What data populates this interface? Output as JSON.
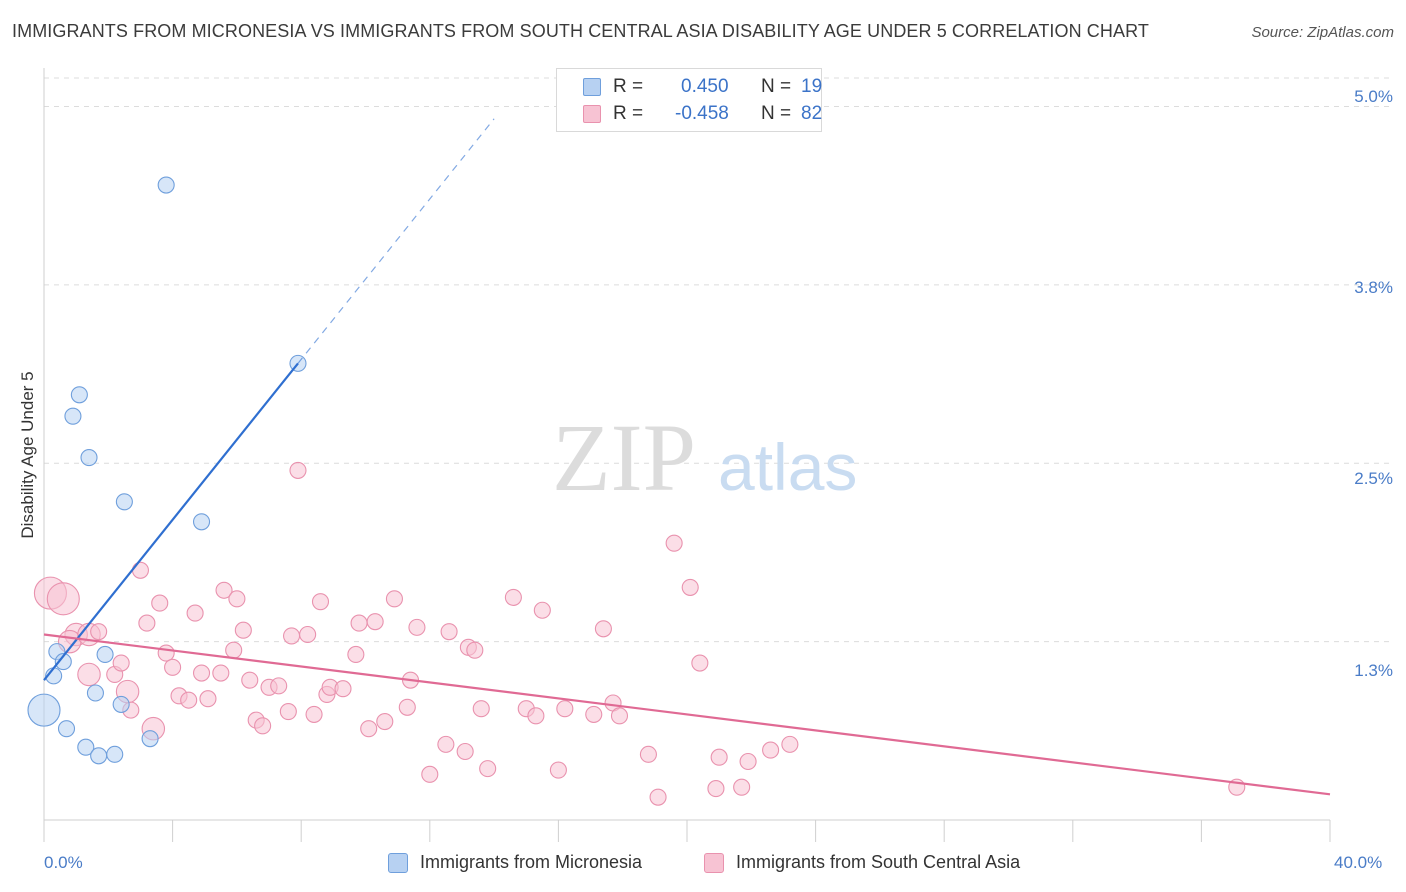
{
  "title": "IMMIGRANTS FROM MICRONESIA VS IMMIGRANTS FROM SOUTH CENTRAL ASIA DISABILITY AGE UNDER 5 CORRELATION CHART",
  "source": "Source: ZipAtlas.com",
  "watermark": {
    "zip": "ZIP",
    "atlas": "atlas"
  },
  "legend": {
    "r_label": "R =",
    "n_label": "N =",
    "series": [
      {
        "r": "0.450",
        "n": "19"
      },
      {
        "r": "-0.458",
        "n": "82"
      }
    ]
  },
  "colors": {
    "blue_fill": "#b7d1f2",
    "blue_stroke": "#6f9fdc",
    "blue_line": "#2f6fd0",
    "pink_fill": "#f7c3d3",
    "pink_stroke": "#e992ae",
    "pink_line": "#e06a94",
    "grid": "#dcdcdc",
    "tick_text": "#4a7cc7"
  },
  "chart_data": {
    "type": "scatter",
    "title": "IMMIGRANTS FROM MICRONESIA VS IMMIGRANTS FROM SOUTH CENTRAL ASIA DISABILITY AGE UNDER 5 CORRELATION CHART",
    "xlabel": "",
    "ylabel": "Disability Age Under 5",
    "xlim": [
      0,
      40
    ],
    "ylim": [
      0,
      5.2
    ],
    "x_tick_labels": [
      "0.0%",
      "40.0%"
    ],
    "y_tick_labels": [
      "1.3%",
      "2.5%",
      "3.8%",
      "5.0%"
    ],
    "y_ticks": [
      1.25,
      2.5,
      3.75,
      5.0
    ],
    "grid": true,
    "legend_position": "top-center",
    "series": [
      {
        "name": "Immigrants from Micronesia",
        "color": "#6f9fdc",
        "trend": {
          "x0": 0.0,
          "y0": 0.98,
          "x1": 7.9,
          "y1": 3.2,
          "dashed_to_x": 14.0
        },
        "points": [
          {
            "x": 3.8,
            "y": 4.45
          },
          {
            "x": 7.9,
            "y": 3.2
          },
          {
            "x": 1.1,
            "y": 2.98
          },
          {
            "x": 0.9,
            "y": 2.83
          },
          {
            "x": 1.4,
            "y": 2.54
          },
          {
            "x": 2.5,
            "y": 2.23
          },
          {
            "x": 4.9,
            "y": 2.09
          },
          {
            "x": 0.4,
            "y": 1.18
          },
          {
            "x": 1.9,
            "y": 1.16
          },
          {
            "x": 0.6,
            "y": 1.11
          },
          {
            "x": 0.3,
            "y": 1.01
          },
          {
            "x": 1.6,
            "y": 0.89
          },
          {
            "x": 2.4,
            "y": 0.81
          },
          {
            "x": 0.0,
            "y": 0.77,
            "size": 2
          },
          {
            "x": 0.7,
            "y": 0.64
          },
          {
            "x": 3.3,
            "y": 0.57
          },
          {
            "x": 1.3,
            "y": 0.51
          },
          {
            "x": 1.7,
            "y": 0.45
          },
          {
            "x": 2.2,
            "y": 0.46
          }
        ]
      },
      {
        "name": "Immigrants from South Central Asia",
        "color": "#e992ae",
        "trend": {
          "x0": 0.0,
          "y0": 1.3,
          "x1": 40.0,
          "y1": 0.18
        },
        "points": [
          {
            "x": 0.2,
            "y": 1.59,
            "size": 2
          },
          {
            "x": 0.6,
            "y": 1.55,
            "size": 2
          },
          {
            "x": 1.0,
            "y": 1.3,
            "size": 1.4
          },
          {
            "x": 0.8,
            "y": 1.25,
            "size": 1.4
          },
          {
            "x": 1.4,
            "y": 1.3,
            "size": 1.4
          },
          {
            "x": 1.7,
            "y": 1.32
          },
          {
            "x": 1.4,
            "y": 1.02,
            "size": 1.4
          },
          {
            "x": 2.2,
            "y": 1.02
          },
          {
            "x": 2.4,
            "y": 1.1
          },
          {
            "x": 2.6,
            "y": 0.9,
            "size": 1.4
          },
          {
            "x": 2.7,
            "y": 0.77
          },
          {
            "x": 3.0,
            "y": 1.75
          },
          {
            "x": 3.2,
            "y": 1.38
          },
          {
            "x": 3.4,
            "y": 0.64,
            "size": 1.4
          },
          {
            "x": 3.6,
            "y": 1.52
          },
          {
            "x": 3.8,
            "y": 1.17
          },
          {
            "x": 4.0,
            "y": 1.07
          },
          {
            "x": 4.2,
            "y": 0.87
          },
          {
            "x": 4.5,
            "y": 0.84
          },
          {
            "x": 4.7,
            "y": 1.45
          },
          {
            "x": 4.9,
            "y": 1.03
          },
          {
            "x": 5.1,
            "y": 0.85
          },
          {
            "x": 5.5,
            "y": 1.03
          },
          {
            "x": 5.6,
            "y": 1.61
          },
          {
            "x": 5.9,
            "y": 1.19
          },
          {
            "x": 6.0,
            "y": 1.55
          },
          {
            "x": 6.2,
            "y": 1.33
          },
          {
            "x": 6.4,
            "y": 0.98
          },
          {
            "x": 6.6,
            "y": 0.7
          },
          {
            "x": 6.8,
            "y": 0.66
          },
          {
            "x": 7.0,
            "y": 0.93
          },
          {
            "x": 7.3,
            "y": 0.94
          },
          {
            "x": 7.6,
            "y": 0.76
          },
          {
            "x": 7.7,
            "y": 1.29
          },
          {
            "x": 7.9,
            "y": 2.45
          },
          {
            "x": 8.2,
            "y": 1.3
          },
          {
            "x": 8.4,
            "y": 0.74
          },
          {
            "x": 8.6,
            "y": 1.53
          },
          {
            "x": 8.8,
            "y": 0.88
          },
          {
            "x": 8.9,
            "y": 0.93
          },
          {
            "x": 9.3,
            "y": 0.92
          },
          {
            "x": 9.7,
            "y": 1.16
          },
          {
            "x": 9.8,
            "y": 1.38
          },
          {
            "x": 10.1,
            "y": 0.64
          },
          {
            "x": 10.3,
            "y": 1.39
          },
          {
            "x": 10.6,
            "y": 0.69
          },
          {
            "x": 10.9,
            "y": 1.55
          },
          {
            "x": 11.3,
            "y": 0.79
          },
          {
            "x": 11.4,
            "y": 0.98
          },
          {
            "x": 11.6,
            "y": 1.35
          },
          {
            "x": 12.0,
            "y": 0.32
          },
          {
            "x": 12.5,
            "y": 0.53
          },
          {
            "x": 12.6,
            "y": 1.32
          },
          {
            "x": 13.1,
            "y": 0.48
          },
          {
            "x": 13.2,
            "y": 1.21
          },
          {
            "x": 13.4,
            "y": 1.19
          },
          {
            "x": 13.6,
            "y": 0.78
          },
          {
            "x": 13.8,
            "y": 0.36
          },
          {
            "x": 14.6,
            "y": 1.56
          },
          {
            "x": 15.0,
            "y": 0.78
          },
          {
            "x": 15.5,
            "y": 1.47
          },
          {
            "x": 15.3,
            "y": 0.73
          },
          {
            "x": 16.0,
            "y": 0.35
          },
          {
            "x": 16.2,
            "y": 0.78
          },
          {
            "x": 17.1,
            "y": 0.74
          },
          {
            "x": 17.4,
            "y": 1.34
          },
          {
            "x": 17.7,
            "y": 0.82
          },
          {
            "x": 17.9,
            "y": 0.73
          },
          {
            "x": 18.8,
            "y": 0.46
          },
          {
            "x": 19.1,
            "y": 0.16
          },
          {
            "x": 19.6,
            "y": 1.94
          },
          {
            "x": 20.1,
            "y": 1.63
          },
          {
            "x": 20.4,
            "y": 1.1
          },
          {
            "x": 20.9,
            "y": 0.22
          },
          {
            "x": 21.0,
            "y": 0.44
          },
          {
            "x": 21.7,
            "y": 0.23
          },
          {
            "x": 21.9,
            "y": 0.41
          },
          {
            "x": 22.6,
            "y": 0.49
          },
          {
            "x": 23.2,
            "y": 0.53
          },
          {
            "x": 37.1,
            "y": 0.23
          }
        ]
      }
    ]
  },
  "bottom_legend": [
    {
      "label": "Immigrants from Micronesia"
    },
    {
      "label": "Immigrants from South Central Asia"
    }
  ]
}
